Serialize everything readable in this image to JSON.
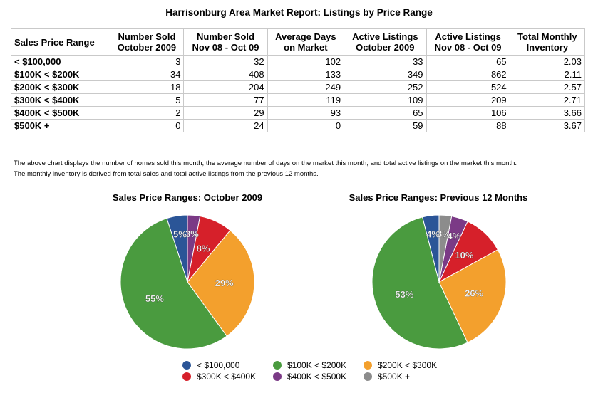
{
  "title": "Harrisonburg Area Market Report: Listings by Price Range",
  "table": {
    "headers": [
      [
        "Sales Price Range",
        ""
      ],
      [
        "Number Sold",
        "October 2009"
      ],
      [
        "Number Sold",
        "Nov 08 - Oct 09"
      ],
      [
        "Average Days",
        "on Market"
      ],
      [
        "Active Listings",
        "October 2009"
      ],
      [
        "Active Listings",
        "Nov 08 - Oct 09"
      ],
      [
        "Total Monthly",
        "Inventory"
      ]
    ],
    "rows": [
      [
        "< $100,000",
        "3",
        "32",
        "102",
        "33",
        "65",
        "2.03"
      ],
      [
        "$100K < $200K",
        "34",
        "408",
        "133",
        "349",
        "862",
        "2.11"
      ],
      [
        "$200K < $300K",
        "18",
        "204",
        "249",
        "252",
        "524",
        "2.57"
      ],
      [
        "$300K < $400K",
        "5",
        "77",
        "119",
        "109",
        "209",
        "2.71"
      ],
      [
        "$400K < $500K",
        "2",
        "29",
        "93",
        "65",
        "106",
        "3.66"
      ],
      [
        "$500K +",
        "0",
        "24",
        "0",
        "59",
        "88",
        "3.67"
      ]
    ]
  },
  "notes": [
    "The above chart displays the number of homes sold this month, the average number of days on the market this month, and total active listings on the market this month.",
    "The monthly inventory is derived from total sales and total active listings from the previous 12 months."
  ],
  "colors": {
    "< $100,000": "#2b5597",
    "$100K < $200K": "#4a9b3f",
    "$200K < $300K": "#f3a02d",
    "$300K < $400K": "#d6202a",
    "$400K < $500K": "#7b3a86",
    "$500K +": "#8c8c8c"
  },
  "chart_data": [
    {
      "type": "pie",
      "title": "Sales Price Ranges: October 2009",
      "slices": [
        {
          "label": "< $100,000",
          "value": 5,
          "text": "5%"
        },
        {
          "label": "$100K < $200K",
          "value": 55,
          "text": "55%"
        },
        {
          "label": "$200K < $300K",
          "value": 29,
          "text": "29%"
        },
        {
          "label": "$300K < $400K",
          "value": 8,
          "text": "8%"
        },
        {
          "label": "$400K < $500K",
          "value": 3,
          "text": "3%"
        },
        {
          "label": "$500K +",
          "value": 0,
          "text": ""
        }
      ]
    },
    {
      "type": "pie",
      "title": "Sales Price Ranges: Previous 12 Months",
      "slices": [
        {
          "label": "< $100,000",
          "value": 4,
          "text": "4%"
        },
        {
          "label": "$100K < $200K",
          "value": 53,
          "text": "53%"
        },
        {
          "label": "$200K < $300K",
          "value": 26,
          "text": "26%"
        },
        {
          "label": "$300K < $400K",
          "value": 10,
          "text": "10%"
        },
        {
          "label": "$400K < $500K",
          "value": 4,
          "text": "4%"
        },
        {
          "label": "$500K +",
          "value": 3,
          "text": "3%"
        }
      ]
    }
  ],
  "legend": [
    "< $100,000",
    "$100K < $200K",
    "$200K < $300K",
    "$300K < $400K",
    "$400K < $500K",
    "$500K +"
  ]
}
